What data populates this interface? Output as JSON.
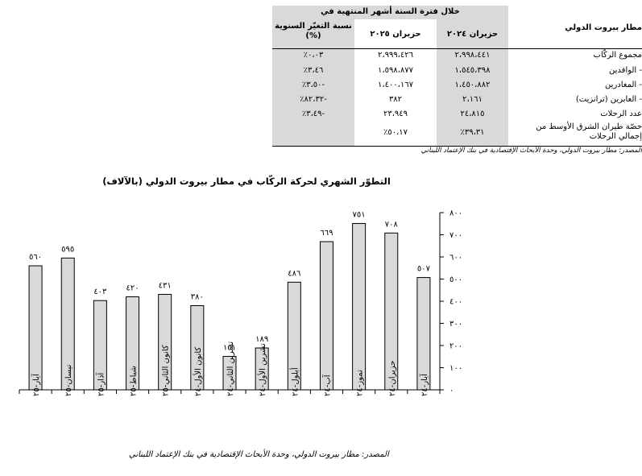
{
  "table": {
    "group_header": "خلال فترة الستة أشهر المنتهية في",
    "row_header": "مطار بيروت الدولي",
    "col_2024": "حزيران ٢٠٢٤",
    "col_2025": "حزيران ٢٠٢٥",
    "col_change": "نسبة التغيّر السنوية (%)",
    "rows": [
      {
        "label": "مجموع الركّاب",
        "v2024": "٢،٩٩٨،٤٤١",
        "v2025": "٢،٩٩٩،٤٢٦",
        "change": "٠،٠٣٪"
      },
      {
        "label": "- الوافدين",
        "v2024": "١،٥٤٥،٣٩٨",
        "v2025": "١،٥٩٨،٨٧٧",
        "change": "٣،٤٦٪"
      },
      {
        "label": "- المغادرين",
        "v2024": "١،٤٥٠،٨٨٢",
        "v2025": "١،٤٠٠،١٦٧",
        "change": "-٣،٥٠٪"
      },
      {
        "label": "- العابرين (ترانزيت)",
        "v2024": "٢،١٦١",
        "v2025": "٣٨٢",
        "change": "-٨٢،٣٢٪"
      },
      {
        "label": "عدد الرحلات",
        "v2024": "٢٤،٨١٥",
        "v2025": "٢٣،٩٤٩",
        "change": "-٣،٤٩٪"
      },
      {
        "label": "حصّة طيران الشرق الأوسط من إجمالي الرحلات",
        "v2024": "٣٩،٣١٪",
        "v2025": "٥٠،١٧٪",
        "change": ""
      }
    ],
    "source": "المصدر: مطار بيروت الدولي، وحدة الأبحاث الإقتصادية في بنك الإعتماد اللبناني"
  },
  "chart_data": {
    "type": "bar",
    "title": "التطوّر الشهري لحركة الركّاب في مطار بيروت الدولي (بالآلاف)",
    "categories": [
      "آيار-٢٥",
      "نيسان-٢٥",
      "آذار-٢٥",
      "شباط-٢٥",
      "كانون الثاني-٢٥",
      "كانون الأول-٢٤",
      "تشرين الثاني-٢٤",
      "تشرين الأول-٢٤",
      "أيلول-٢٤",
      "آب-٢٤",
      "تموز-٢٤",
      "حزيران-٢٤",
      "آيار-٢٤"
    ],
    "values": [
      560,
      595,
      403,
      420,
      431,
      380,
      151,
      189,
      486,
      669,
      751,
      708,
      507
    ],
    "value_labels": [
      "٥٦٠",
      "٥٩٥",
      "٤٠٣",
      "٤٢٠",
      "٤٣١",
      "٣٨٠",
      "١٥١",
      "١٨٩",
      "٤٨٦",
      "٦٦٩",
      "٧٥١",
      "٧٠٨",
      "٥٠٧"
    ],
    "ylim": [
      0,
      800
    ],
    "yticks": [
      "٠",
      "١٠٠",
      "٢٠٠",
      "٣٠٠",
      "٤٠٠",
      "٥٠٠",
      "٦٠٠",
      "٧٠٠",
      "٨٠٠"
    ],
    "y_axis_side": "right",
    "grid": false,
    "bar_color": "#d9d9d9",
    "source": "المصدر: مطار بيروت الدولي، وحدة الأبحاث الإقتصادية في بنك الإعتماد اللبناني"
  }
}
